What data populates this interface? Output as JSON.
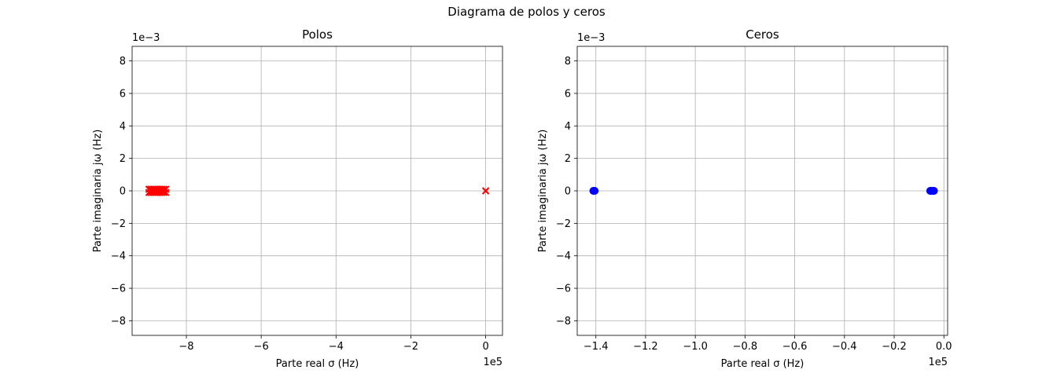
{
  "figure": {
    "suptitle": "Diagrama de polos y ceros"
  },
  "chart_data": [
    {
      "type": "scatter",
      "title": "Polos",
      "xlabel": "Parte real σ (Hz)",
      "ylabel": "Parte imaginaria jω (Hz)",
      "x_offset_label": "1e5",
      "y_offset_label": "1e−3",
      "xlim": [
        -9.45,
        0.45
      ],
      "ylim": [
        -8.9,
        8.9
      ],
      "xticks": [
        -8,
        -6,
        -4,
        -2,
        0
      ],
      "xtick_labels": [
        "−8",
        "−6",
        "−4",
        "−2",
        "0"
      ],
      "yticks": [
        8,
        6,
        4,
        2,
        0,
        -2,
        -4,
        -6,
        -8
      ],
      "ytick_labels": [
        "8",
        "6",
        "4",
        "2",
        "0",
        "−2",
        "−4",
        "−6",
        "−8"
      ],
      "grid": true,
      "marker": "x",
      "color": "#ff0000",
      "series": [
        {
          "x": [
            -9.0,
            -8.95,
            -8.9,
            -8.85,
            -8.8,
            -8.75,
            -8.7,
            -8.65,
            -8.6,
            -8.55,
            -9.0,
            -8.95,
            -8.9,
            -8.85,
            -8.8,
            -8.75,
            -8.7,
            -8.65,
            -8.6,
            -8.55,
            0.0
          ],
          "y": [
            0.1,
            0.1,
            0.1,
            0.1,
            0.1,
            0.1,
            0.1,
            0.1,
            0.1,
            0.1,
            -0.1,
            -0.1,
            -0.1,
            -0.1,
            -0.1,
            -0.1,
            -0.1,
            -0.1,
            -0.1,
            -0.1,
            0.0
          ]
        }
      ]
    },
    {
      "type": "scatter",
      "title": "Ceros",
      "xlabel": "Parte real σ (Hz)",
      "ylabel": "Parte imaginaria jω (Hz)",
      "x_offset_label": "1e5",
      "y_offset_label": "1e−3",
      "xlim": [
        -1.475,
        0.015
      ],
      "ylim": [
        -8.9,
        8.9
      ],
      "xticks": [
        -1.4,
        -1.2,
        -1.0,
        -0.8,
        -0.6,
        -0.4,
        -0.2,
        0.0
      ],
      "xtick_labels": [
        "−1.4",
        "−1.2",
        "−1.0",
        "−0.8",
        "−0.6",
        "−0.4",
        "−0.2",
        "0.0"
      ],
      "yticks": [
        8,
        6,
        4,
        2,
        0,
        -2,
        -4,
        -6,
        -8
      ],
      "ytick_labels": [
        "8",
        "6",
        "4",
        "2",
        "0",
        "−2",
        "−4",
        "−6",
        "−8"
      ],
      "grid": true,
      "marker": "o",
      "color": "#0000ff",
      "series": [
        {
          "x": [
            -1.41,
            -1.405,
            -0.055,
            -0.05,
            -0.045,
            -0.04
          ],
          "y": [
            0,
            0,
            0,
            0,
            0,
            0
          ]
        }
      ]
    }
  ]
}
